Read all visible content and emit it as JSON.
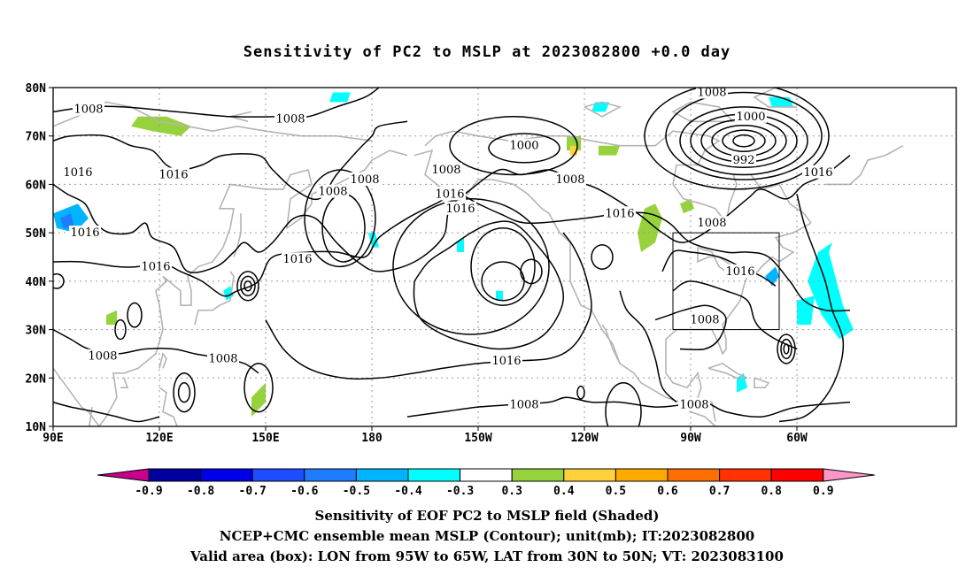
{
  "title": "Sensitivity of PC2 to MSLP at 2023082800 +0.0 day",
  "axes": {
    "lat_labels": [
      "80N",
      "70N",
      "60N",
      "50N",
      "40N",
      "30N",
      "20N",
      "10N"
    ],
    "lon_labels": [
      "90E",
      "120E",
      "150E",
      "180",
      "150W",
      "120W",
      "90W",
      "60W"
    ]
  },
  "contour_labels": [
    {
      "text": "1008",
      "lon": 100,
      "lat": 75.5
    },
    {
      "text": "1008",
      "lon": 157,
      "lat": 73.5
    },
    {
      "text": "1016",
      "lon": 97,
      "lat": 62.5
    },
    {
      "text": "1016",
      "lon": 124,
      "lat": 62
    },
    {
      "text": "1008",
      "lon": 169,
      "lat": 58.5
    },
    {
      "text": "1008",
      "lon": 178,
      "lat": 61
    },
    {
      "text": "1000",
      "lon": -137,
      "lat": 68
    },
    {
      "text": "1008",
      "lon": -159,
      "lat": 63
    },
    {
      "text": "1016",
      "lon": -158,
      "lat": 58
    },
    {
      "text": "1016",
      "lon": -155,
      "lat": 55
    },
    {
      "text": "1008",
      "lon": -124,
      "lat": 61
    },
    {
      "text": "1016",
      "lon": -110,
      "lat": 54
    },
    {
      "text": "1008",
      "lon": -84,
      "lat": 79
    },
    {
      "text": "1000",
      "lon": -73,
      "lat": 74
    },
    {
      "text": "992",
      "lon": -75,
      "lat": 65
    },
    {
      "text": "1008",
      "lon": -84,
      "lat": 52
    },
    {
      "text": "1016",
      "lon": -54,
      "lat": 62.5
    },
    {
      "text": "1016",
      "lon": 99,
      "lat": 50
    },
    {
      "text": "1016",
      "lon": 119,
      "lat": 43
    },
    {
      "text": "1016",
      "lon": 159,
      "lat": 44.5
    },
    {
      "text": "1016",
      "lon": -76,
      "lat": 42
    },
    {
      "text": "1008",
      "lon": -86,
      "lat": 32
    },
    {
      "text": "1008",
      "lon": 104,
      "lat": 24.5
    },
    {
      "text": "1008",
      "lon": 138,
      "lat": 24
    },
    {
      "text": "1016",
      "lon": -142,
      "lat": 23.5
    },
    {
      "text": "1008",
      "lon": -137,
      "lat": 14.5
    },
    {
      "text": "1008",
      "lon": -89,
      "lat": 14.5
    }
  ],
  "valid_box": {
    "lon_min": -95,
    "lon_max": -65,
    "lat_min": 30,
    "lat_max": 50
  },
  "colorbar": {
    "labels": [
      "-0.9",
      "-0.8",
      "-0.7",
      "-0.6",
      "-0.5",
      "-0.4",
      "-0.3",
      "0.3",
      "0.4",
      "0.5",
      "0.6",
      "0.7",
      "0.8",
      "0.9"
    ],
    "colors": [
      "#0000a0",
      "#0000e8",
      "#1e4cff",
      "#1f7cff",
      "#00b4ff",
      "#00ffff",
      "#ffffff",
      "#96d23c",
      "#ffd23c",
      "#ffaa00",
      "#ff6e00",
      "#ff3200",
      "#ff0000"
    ],
    "low_end_color": "#c8008c",
    "high_end_color": "#ff96c8"
  },
  "captions": {
    "line1": "Sensitivity of EOF PC2 to MSLP field (Shaded)",
    "line2": "NCEP+CMC ensemble mean MSLP (Contour); unit(mb); IT:2023082800",
    "line3": "Valid area (box): LON from 95W to 65W, LAT from 30N to 50N; VT: 2023083100"
  },
  "colors": {
    "frame": "#000000",
    "grid": "#9a9a9a",
    "coast": "#b4b4b4",
    "contour": "#000000"
  }
}
